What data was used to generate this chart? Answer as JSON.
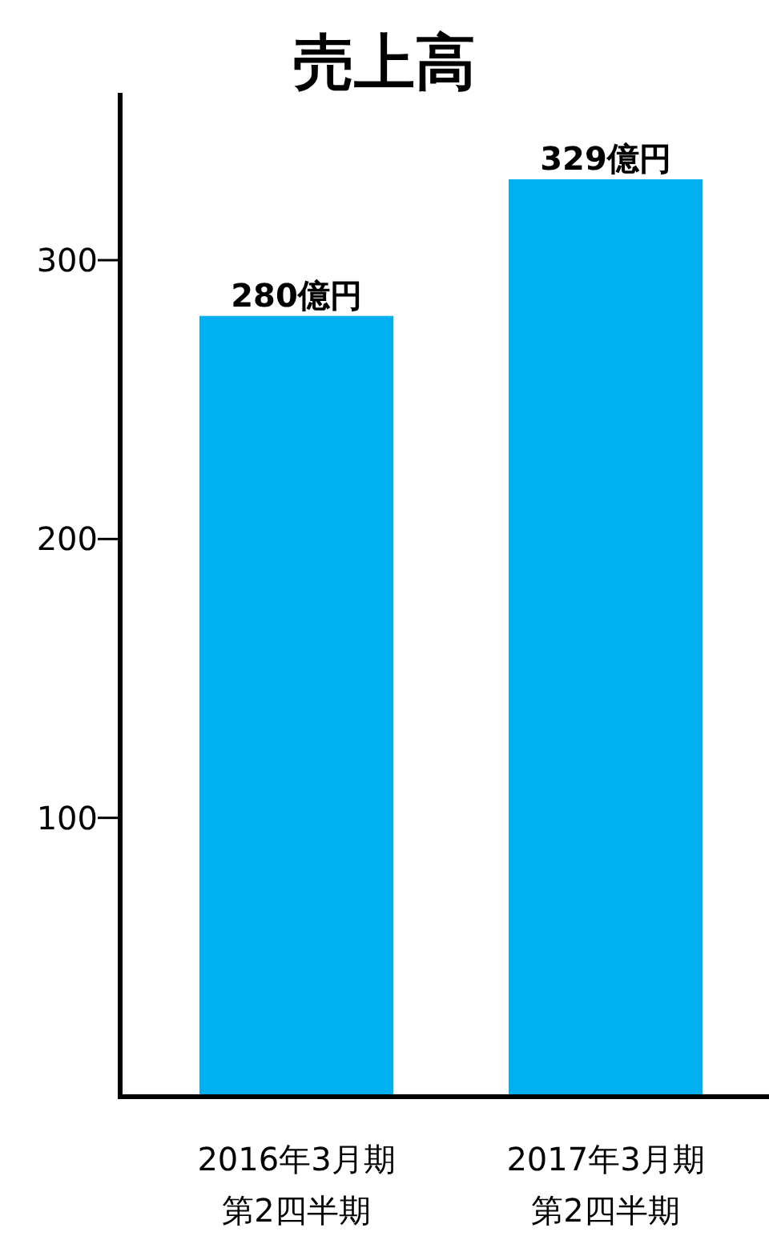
{
  "chart_data": {
    "type": "bar",
    "title": "売上高",
    "categories": [
      "2016年3月期第2四半期",
      "2017年3月期第2四半期"
    ],
    "values": [
      280,
      329
    ],
    "value_labels": [
      "280億円",
      "329億円"
    ],
    "color": "#00b0f0",
    "ylim": [
      0,
      360
    ],
    "yticks": [
      100,
      200,
      300
    ],
    "grid": false
  }
}
